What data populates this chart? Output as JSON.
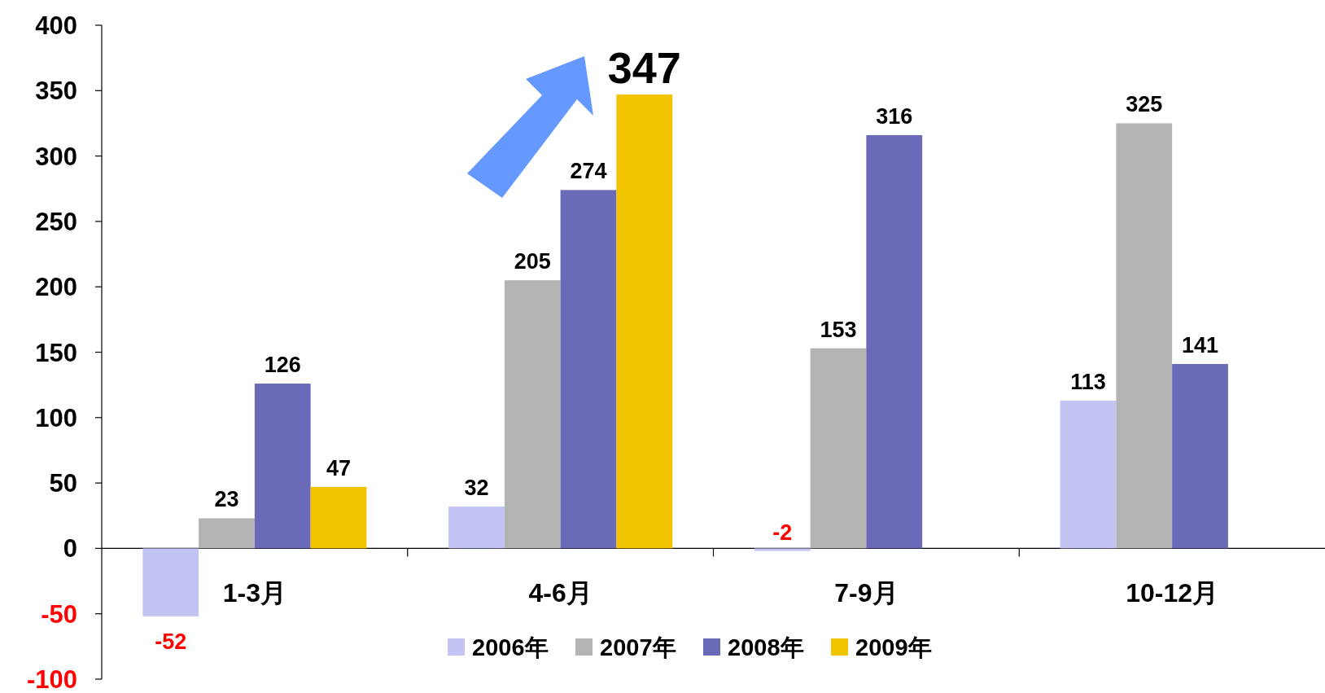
{
  "chart_data": {
    "type": "bar",
    "categories": [
      "1-3月",
      "4-6月",
      "7-9月",
      "10-12月"
    ],
    "series": [
      {
        "name": "2006年",
        "color": "#c4c4f4",
        "values": [
          -52,
          32,
          -2,
          113
        ]
      },
      {
        "name": "2007年",
        "color": "#b4b4b4",
        "values": [
          23,
          205,
          153,
          325
        ]
      },
      {
        "name": "2008年",
        "color": "#6a6ab8",
        "values": [
          126,
          274,
          316,
          141
        ]
      },
      {
        "name": "2009年",
        "color": "#f2c400",
        "values": [
          47,
          347,
          null,
          null
        ]
      }
    ],
    "ylim": [
      -100,
      400
    ],
    "yticks": [
      -100,
      -50,
      0,
      50,
      100,
      150,
      200,
      250,
      300,
      350,
      400
    ],
    "data_labels": true,
    "legend": "bottom"
  }
}
